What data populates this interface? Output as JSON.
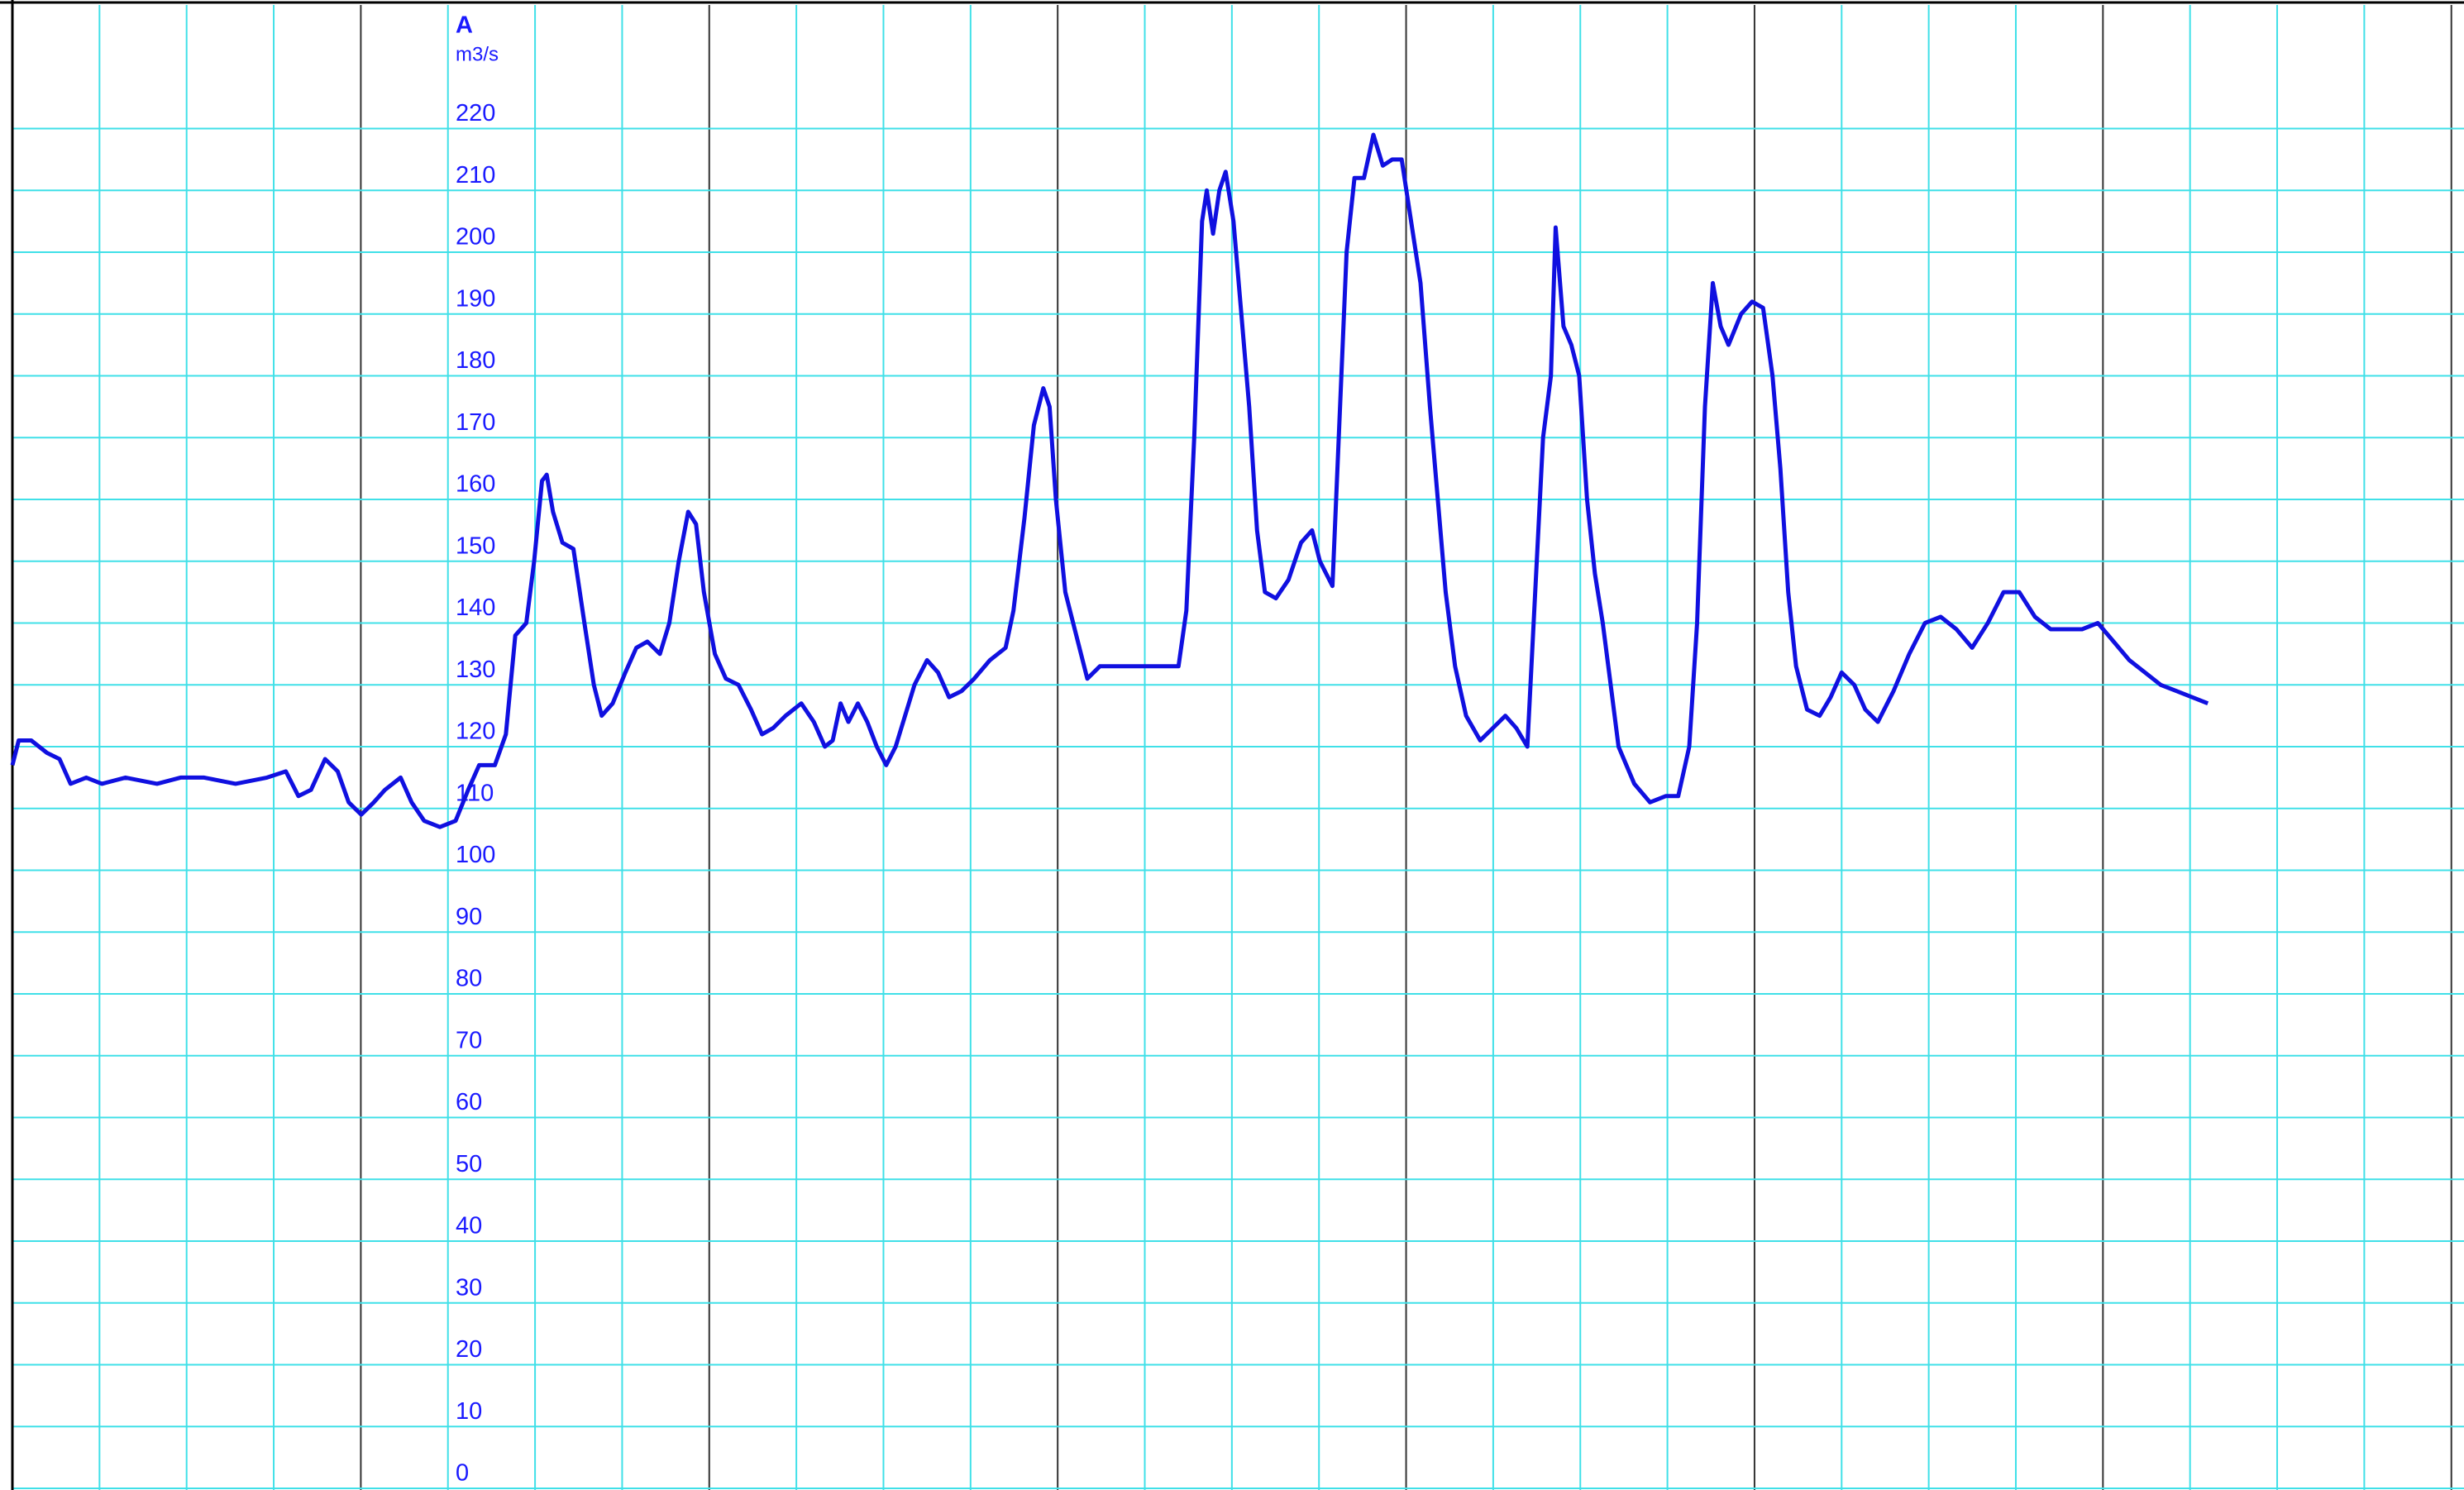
{
  "chart_data": {
    "type": "line",
    "title": "A",
    "y_label": "m3/s",
    "x": [
      0,
      4,
      12,
      22,
      30,
      37,
      47,
      57,
      72,
      92,
      107,
      122,
      142,
      162,
      174,
      182,
      190,
      199,
      207,
      214,
      222,
      230,
      237,
      247,
      254,
      262,
      272,
      282,
      290,
      297,
      307,
      314,
      320,
      327,
      332,
      337,
      340,
      344,
      350,
      357,
      364,
      370,
      375,
      382,
      390,
      397,
      404,
      412,
      418,
      424,
      430,
      435,
      440,
      447,
      454,
      462,
      470,
      477,
      484,
      492,
      502,
      510,
      517,
      522,
      527,
      532,
      538,
      544,
      550,
      556,
      562,
      568,
      574,
      582,
      589,
      596,
      604,
      612,
      622,
      632,
      637,
      644,
      650,
      656,
      660,
      664,
      670,
      677,
      684,
      692,
      702,
      712,
      722,
      732,
      742,
      747,
      752,
      757,
      760,
      764,
      768,
      772,
      777,
      782,
      787,
      792,
      797,
      804,
      812,
      820,
      827,
      832,
      840,
      844,
      849,
      854,
      860,
      866,
      872,
      878,
      884,
      890,
      896,
      902,
      907,
      912,
      918,
      925,
      934,
      942,
      950,
      957,
      964,
      969,
      974,
      979,
      982,
      987,
      992,
      997,
      1002,
      1007,
      1012,
      1017,
      1022,
      1032,
      1042,
      1052,
      1060,
      1067,
      1072,
      1077,
      1082,
      1087,
      1092,
      1100,
      1107,
      1114,
      1120,
      1125,
      1130,
      1135,
      1142,
      1150,
      1157,
      1164,
      1172,
      1179,
      1187,
      1197,
      1207,
      1217,
      1227,
      1237,
      1247,
      1257,
      1267,
      1277,
      1287,
      1297,
      1307,
      1317,
      1327,
      1337,
      1347,
      1357,
      1367,
      1377,
      1387,
      1397
    ],
    "series": [
      {
        "color": "#1010e0",
        "values": [
          117,
          121,
          121,
          119,
          118,
          114,
          115,
          114,
          115,
          114,
          115,
          115,
          114,
          115,
          116,
          112,
          113,
          118,
          116,
          111,
          109,
          111,
          113,
          115,
          111,
          108,
          107,
          108,
          113,
          117,
          117,
          122,
          138,
          140,
          150,
          163,
          164,
          158,
          153,
          152,
          140,
          130,
          125,
          127,
          132,
          136,
          137,
          135,
          140,
          150,
          158,
          156,
          145,
          135,
          131,
          130,
          126,
          122,
          123,
          125,
          127,
          124,
          120,
          121,
          127,
          124,
          127,
          124,
          120,
          117,
          120,
          125,
          130,
          134,
          132,
          128,
          129,
          131,
          134,
          136,
          142,
          157,
          172,
          178,
          175,
          160,
          145,
          138,
          131,
          133,
          133,
          133,
          133,
          133,
          133,
          142,
          170,
          205,
          210,
          203,
          210,
          213,
          205,
          190,
          175,
          155,
          145,
          144,
          147,
          153,
          155,
          150,
          146,
          170,
          200,
          212,
          212,
          219,
          214,
          215,
          215,
          205,
          195,
          175,
          160,
          145,
          133,
          125,
          121,
          123,
          125,
          123,
          120,
          145,
          170,
          180,
          204,
          188,
          185,
          180,
          160,
          148,
          140,
          130,
          120,
          114,
          111,
          112,
          112,
          120,
          140,
          175,
          195,
          188,
          185,
          190,
          192,
          191,
          180,
          165,
          145,
          133,
          126,
          125,
          128,
          132,
          130,
          126,
          124,
          129,
          135,
          140,
          141,
          139,
          136,
          140,
          145,
          145,
          141,
          139,
          139,
          139,
          140,
          137,
          134,
          132,
          130,
          129,
          128,
          127
        ]
      }
    ],
    "xlim": [
      0,
      1560
    ],
    "ylim": [
      0,
      240
    ],
    "yticks": [
      0,
      10,
      20,
      30,
      40,
      50,
      60,
      70,
      80,
      90,
      100,
      110,
      120,
      130,
      140,
      150,
      160,
      170,
      180,
      190,
      200,
      210,
      220
    ],
    "grid": true
  }
}
